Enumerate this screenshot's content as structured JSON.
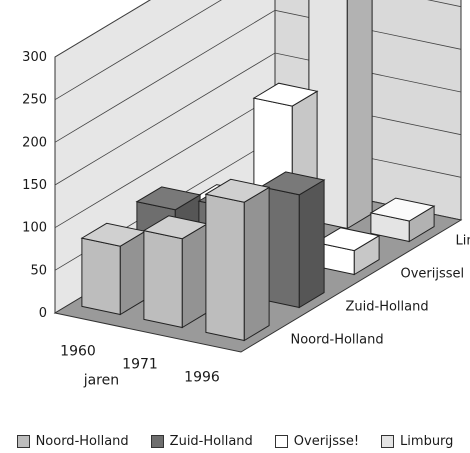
{
  "chart_data": {
    "type": "bar",
    "subtype": "3d-clustered-column",
    "categories": [
      "1960",
      "1971",
      "1996"
    ],
    "xlabel": "jaren",
    "ylabel": "",
    "title": "",
    "ylim": [
      0,
      300
    ],
    "yticks": [
      "0",
      "50",
      "100",
      "150",
      "200",
      "250",
      "300"
    ],
    "grid": true,
    "legend_position": "bottom",
    "depth_order": [
      "Noord-Holland",
      "Zuid-Holland",
      "Overijssel",
      "Limburg"
    ],
    "series": [
      {
        "name": "Noord-Holland",
        "values": [
          80,
          104,
          162
        ],
        "color": "#bdbdbd"
      },
      {
        "name": "Zuid-Holland",
        "values": [
          84,
          100,
          132
        ],
        "color": "#6e6e6e"
      },
      {
        "name": "Overijssel",
        "values": [
          48,
          182,
          28
        ],
        "color": "#ffffff"
      },
      {
        "name": "Limburg",
        "values": [
          8,
          315,
          24
        ],
        "color": "#e4e4e4"
      }
    ]
  },
  "legend": {
    "items": [
      {
        "label": "Noord-Holland",
        "color": "#bdbdbd"
      },
      {
        "label": "Zuid-Holland",
        "color": "#6e6e6e"
      },
      {
        "label": "Overijsse!",
        "color": "#ffffff"
      },
      {
        "label": "Limburg",
        "color": "#e4e4e4"
      }
    ]
  }
}
